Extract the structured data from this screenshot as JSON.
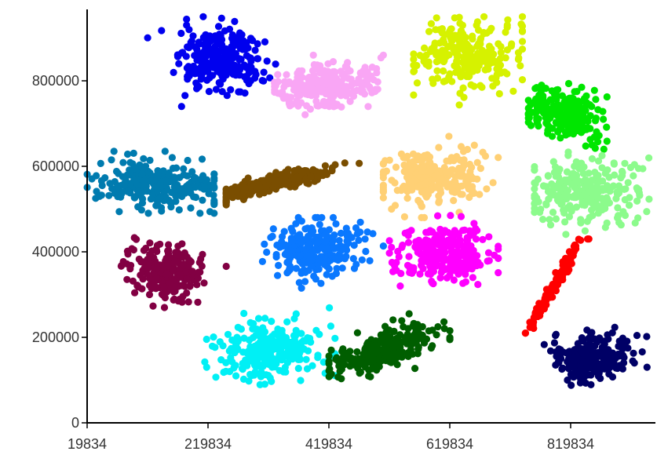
{
  "chart_data": {
    "type": "scatter",
    "title": "",
    "xlabel": "",
    "ylabel": "",
    "xlim": [
      19834,
      1019834
    ],
    "ylim": [
      0,
      1000000
    ],
    "x_ticks": [
      19834,
      219834,
      419834,
      619834,
      819834
    ],
    "y_ticks": [
      0,
      200000,
      400000,
      600000,
      800000
    ],
    "x_tick_labels": [
      "19834",
      "219834",
      "419834",
      "619834",
      "819834"
    ],
    "y_tick_labels": [
      "0",
      "200000",
      "400000",
      "600000",
      "800000"
    ],
    "grid": false,
    "legend": "none",
    "series": [
      {
        "color": "#0000EE",
        "center": [
          243000,
          845000
        ],
        "sd": [
          34000,
          38000
        ],
        "rho": 0,
        "n": 260,
        "xrange": [
          120000,
          370000
        ],
        "yrange": [
          740000,
          950000
        ]
      },
      {
        "color": "#F9A6F5",
        "center": [
          410000,
          788000
        ],
        "sd": [
          44000,
          26000
        ],
        "rho": 0.25,
        "n": 240,
        "xrange": [
          330000,
          510000
        ],
        "yrange": [
          700000,
          860000
        ]
      },
      {
        "color": "#D6F200",
        "center": [
          645000,
          860000
        ],
        "sd": [
          43000,
          40000
        ],
        "rho": 0.15,
        "n": 240,
        "xrange": [
          560000,
          740000
        ],
        "yrange": [
          720000,
          950000
        ]
      },
      {
        "color": "#00E600",
        "center": [
          814000,
          725000
        ],
        "sd": [
          30000,
          32000
        ],
        "rho": -0.2,
        "n": 230,
        "xrange": [
          750000,
          880000
        ],
        "yrange": [
          640000,
          820000
        ]
      },
      {
        "color": "#007BAF",
        "center": [
          135000,
          560000
        ],
        "sd": [
          50000,
          30000
        ],
        "rho": -0.15,
        "n": 260,
        "xrange": [
          20000,
          230000
        ],
        "yrange": [
          490000,
          635000
        ]
      },
      {
        "color": "#7A4E00",
        "center": [
          322000,
          560000
        ],
        "sd": [
          50000,
          20000
        ],
        "rho": 0.85,
        "n": 230,
        "xrange": [
          250000,
          470000
        ],
        "yrange": [
          510000,
          625000
        ]
      },
      {
        "color": "#FFD075",
        "center": [
          590000,
          575000
        ],
        "sd": [
          45000,
          34000
        ],
        "rho": 0.1,
        "n": 250,
        "xrange": [
          510000,
          700000
        ],
        "yrange": [
          480000,
          670000
        ]
      },
      {
        "color": "#8CFB8C",
        "center": [
          845000,
          545000
        ],
        "sd": [
          42000,
          36000
        ],
        "rho": 0.1,
        "n": 260,
        "xrange": [
          760000,
          955000
        ],
        "yrange": [
          440000,
          640000
        ]
      },
      {
        "color": "#820043",
        "center": [
          153000,
          350000
        ],
        "sd": [
          30000,
          32000
        ],
        "rho": -0.15,
        "n": 230,
        "xrange": [
          70000,
          250000
        ],
        "yrange": [
          255000,
          460000
        ]
      },
      {
        "color": "#0A78FF",
        "center": [
          400000,
          405000
        ],
        "sd": [
          40000,
          32000
        ],
        "rho": 0.1,
        "n": 240,
        "xrange": [
          310000,
          510000
        ],
        "yrange": [
          315000,
          480000
        ]
      },
      {
        "color": "#FF00FF",
        "center": [
          608000,
          395000
        ],
        "sd": [
          43000,
          33000
        ],
        "rho": 0,
        "n": 250,
        "xrange": [
          520000,
          700000
        ],
        "yrange": [
          320000,
          485000
        ]
      },
      {
        "color": "#FF0000",
        "center": [
          792000,
          320000
        ],
        "sd": [
          19000,
          45000
        ],
        "rho": 0.985,
        "n": 170,
        "xrange": [
          745000,
          850000
        ],
        "yrange": [
          210000,
          430000
        ]
      },
      {
        "color": "#00F0F5",
        "center": [
          320000,
          165000
        ],
        "sd": [
          44000,
          34000
        ],
        "rho": 0.1,
        "n": 260,
        "xrange": [
          200000,
          430000
        ],
        "yrange": [
          50000,
          275000
        ]
      },
      {
        "color": "#005E00",
        "center": [
          515000,
          170000
        ],
        "sd": [
          43000,
          30000
        ],
        "rho": 0.65,
        "n": 230,
        "xrange": [
          420000,
          620000
        ],
        "yrange": [
          50000,
          255000
        ]
      },
      {
        "color": "#000066",
        "center": [
          853000,
          155000
        ],
        "sd": [
          33000,
          27000
        ],
        "rho": 0.1,
        "n": 220,
        "xrange": [
          760000,
          960000
        ],
        "yrange": [
          80000,
          250000
        ]
      }
    ]
  }
}
